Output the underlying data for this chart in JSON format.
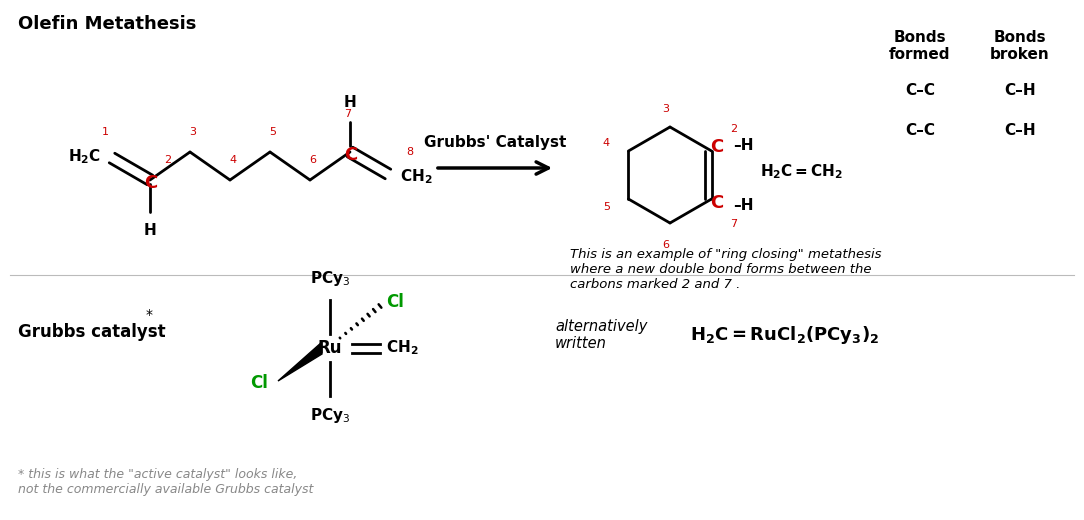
{
  "title": "Olefin Metathesis",
  "bg_color": "#ffffff",
  "black": "#000000",
  "red": "#cc0000",
  "green": "#009900",
  "gray": "#888888",
  "arrow_label": "Grubbs' Catalyst",
  "bonds_formed_header": "Bonds\nformed",
  "bonds_broken_header": "Bonds\nbroken",
  "bonds_formed": [
    "C–C",
    "C–C"
  ],
  "bonds_broken": [
    "C–H",
    "C–H"
  ],
  "ring_close_text": "This is an example of \"ring closing\" metathesis\nwhere a new double bond forms between the\ncarbons marked 2 and 7 .",
  "grubbs_label": "Grubbs catalyst",
  "alt_written": "alternatively\nwritten",
  "footnote": "* this is what the \"active catalyst\" looks like,\nnot the commercially available Grubbs catalyst"
}
